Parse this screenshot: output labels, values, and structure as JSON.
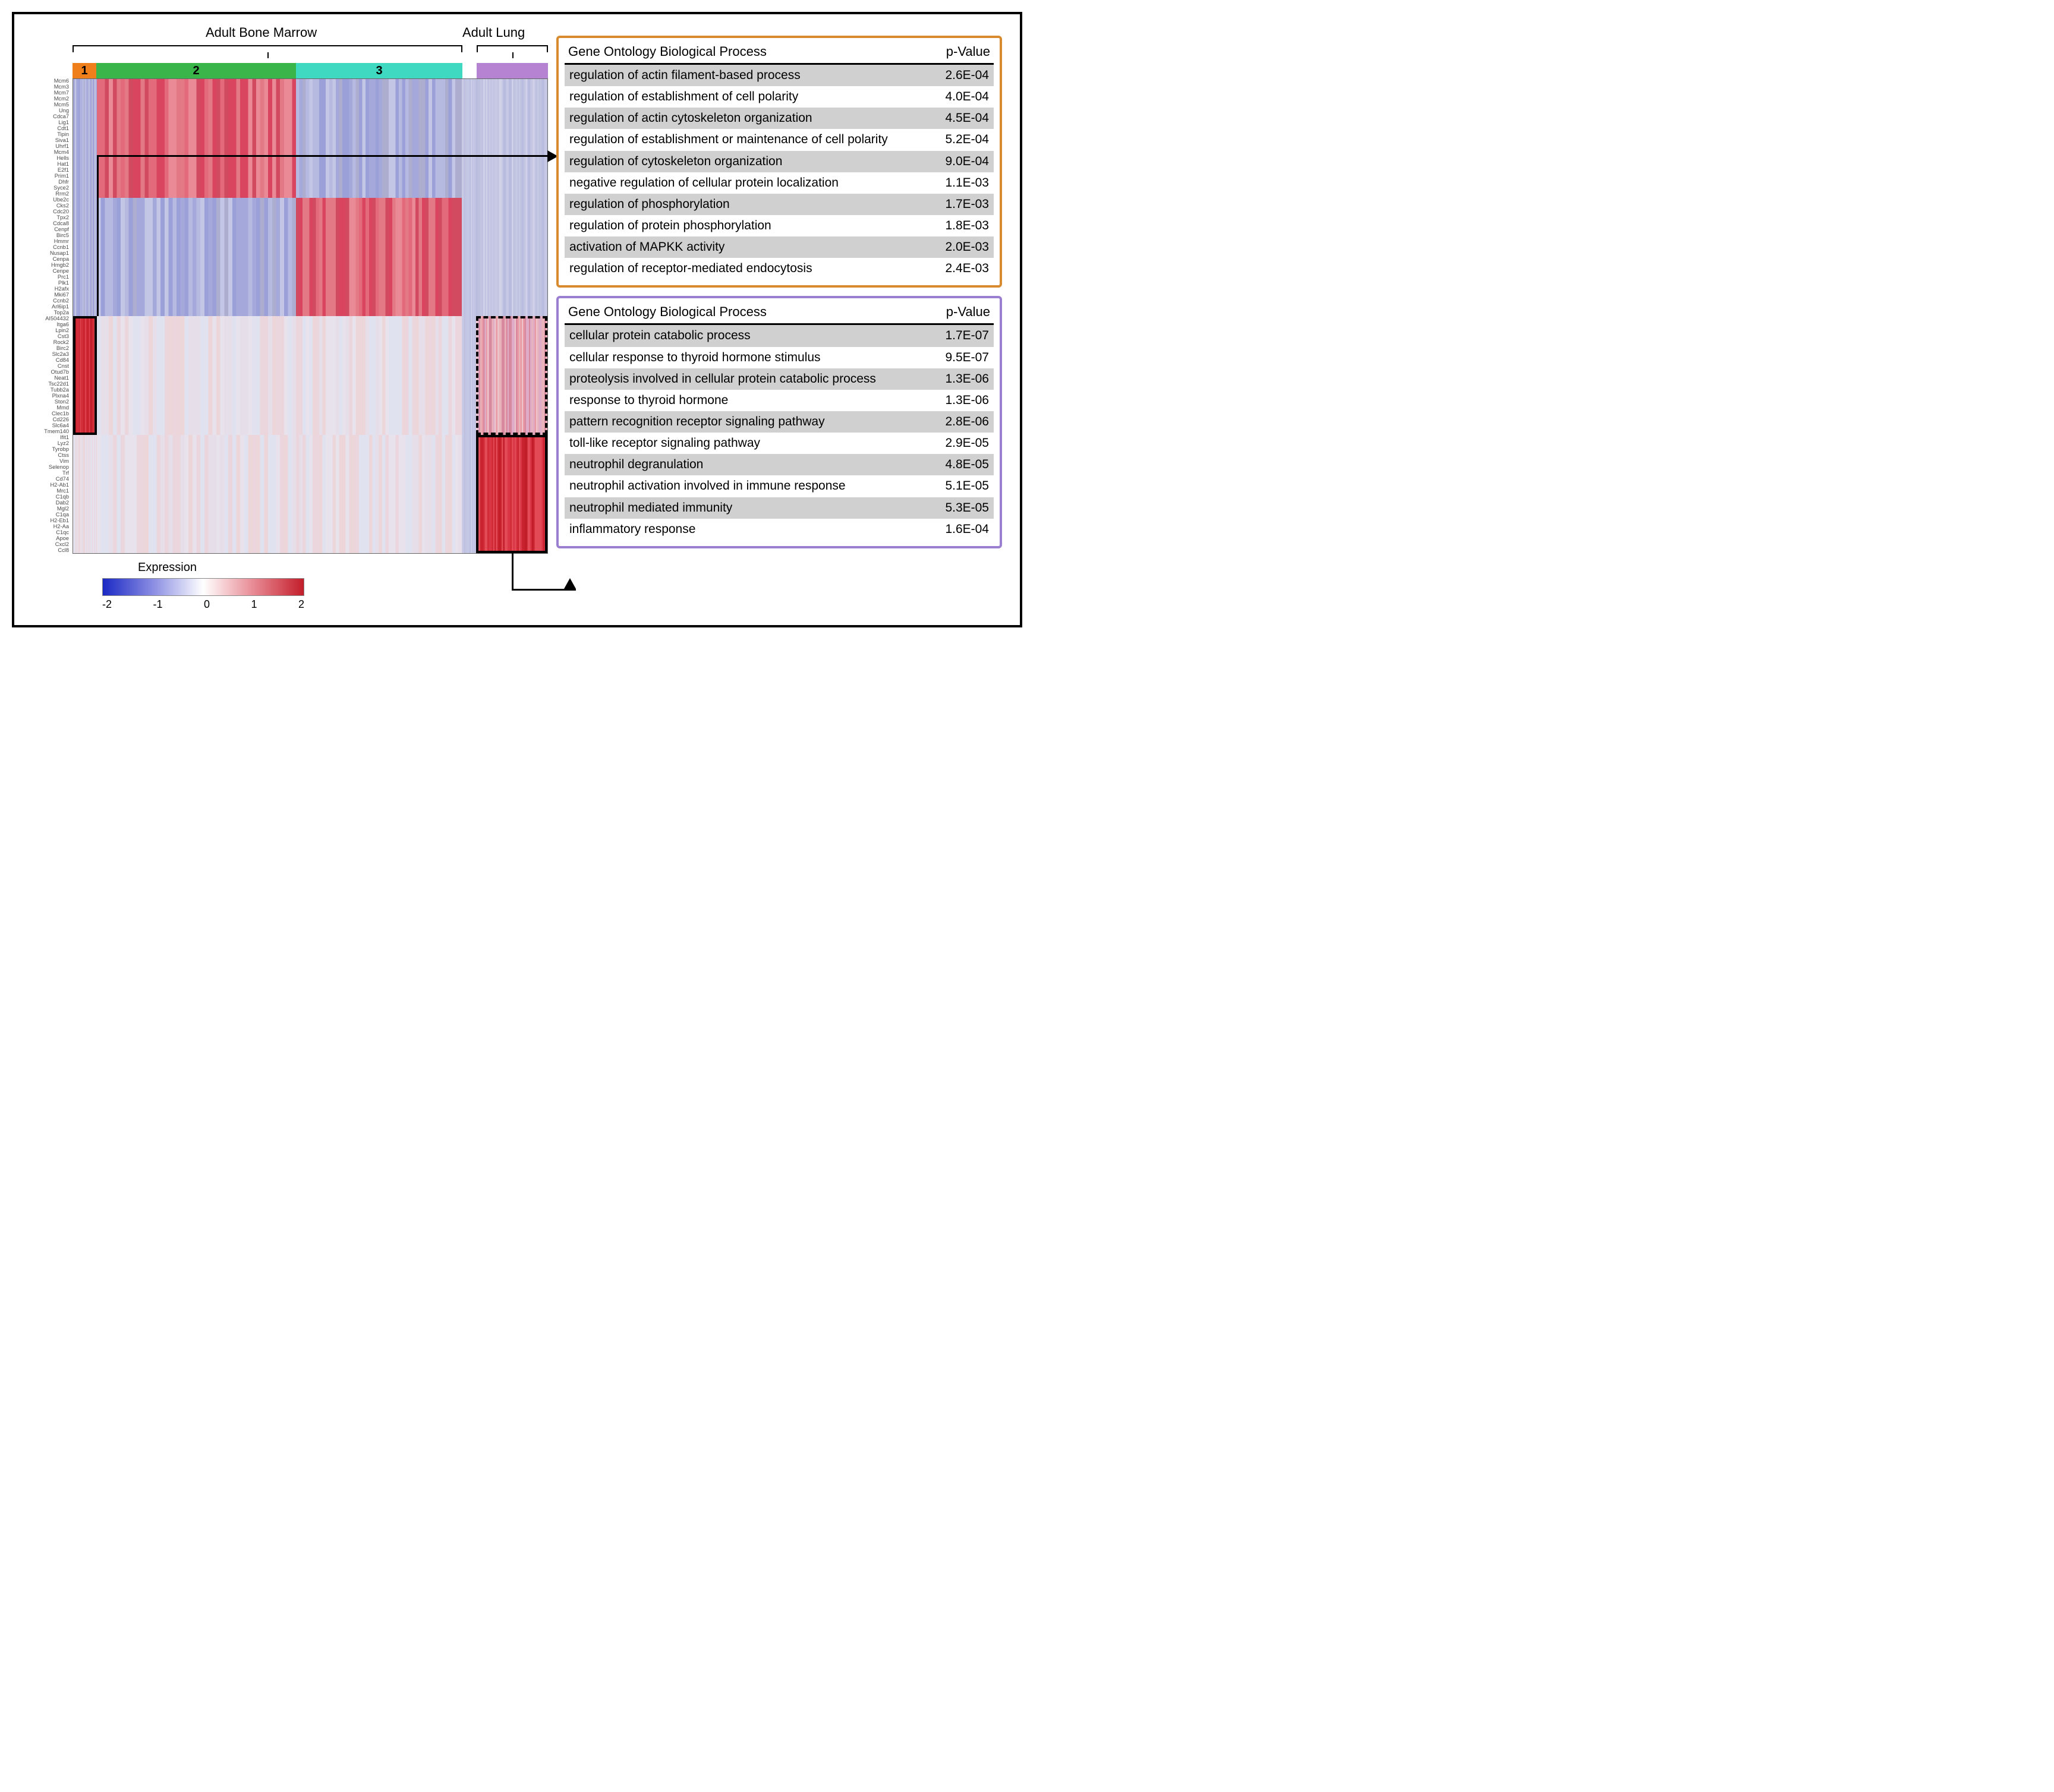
{
  "labels": {
    "tissue1": "Adult Bone Marrow",
    "tissue2": "Adult Lung",
    "legend_title": "Expression"
  },
  "brackets": {
    "bm": {
      "left_pct": 0,
      "width_pct": 82,
      "label_left_pct": 28
    },
    "lung": {
      "left_pct": 85,
      "width_pct": 15,
      "label_left_pct": 82
    }
  },
  "clusters": [
    {
      "label": "1",
      "width_pct": 5,
      "color": "#ef7f1a"
    },
    {
      "label": "2",
      "width_pct": 42,
      "color": "#39b54a"
    },
    {
      "label": "3",
      "width_pct": 35,
      "color": "#3fd9c1"
    },
    {
      "label": "",
      "width_pct": 3,
      "color": "#ffffff"
    },
    {
      "label": "",
      "width_pct": 15,
      "color": "#b583d1"
    }
  ],
  "genes": [
    "Mcm6",
    "Mcm3",
    "Mcm7",
    "Mcm2",
    "Mcm5",
    "Ung",
    "Cdca7",
    "Lig1",
    "Cdt1",
    "Tipin",
    "Siva1",
    "Uhrf1",
    "Mcm4",
    "Hells",
    "Hat1",
    "E2f1",
    "Prim1",
    "Dhfr",
    "Syce2",
    "Rrm2",
    "Ube2c",
    "Cks2",
    "Cdc20",
    "Tpx2",
    "Cdca8",
    "Cenpf",
    "Birc5",
    "Hmmr",
    "Ccnb1",
    "Nusap1",
    "Cenpa",
    "Hmgb2",
    "Cenpe",
    "Prc1",
    "Plk1",
    "H2afx",
    "Mki67",
    "Ccnb2",
    "Arl6ip1",
    "Top2a",
    "AI504432",
    "Itga6",
    "Lpin2",
    "Cst3",
    "Rock2",
    "Birc2",
    "Slc2a3",
    "Cd84",
    "Cnst",
    "Otud7b",
    "Neat1",
    "Tsc22d1",
    "Tubb2a",
    "Plxna4",
    "Ston2",
    "Mmd",
    "Clec1b",
    "Cd226",
    "Slc6a4",
    "Tmem140",
    "Ifit1",
    "Lyz2",
    "Tyrobp",
    "Ctss",
    "Vim",
    "Selenop",
    "Trf",
    "Cd74",
    "H2-Ab1",
    "Mrc1",
    "C1qb",
    "Dab2",
    "Mgl2",
    "C1qa",
    "H2-Eb1",
    "H2-Aa",
    "C1qc",
    "Apoe",
    "Cxcl2",
    "Ccl8"
  ],
  "heatmap": {
    "columns": [
      {
        "name": "c1",
        "width_pct": 5,
        "blocks": [
          {
            "h": 50,
            "class": "low"
          },
          {
            "h": 25,
            "class": "high-strong"
          },
          {
            "h": 25,
            "class": "faint"
          }
        ]
      },
      {
        "name": "c2",
        "width_pct": 42,
        "blocks": [
          {
            "h": 25,
            "class": "high"
          },
          {
            "h": 25,
            "class": "low"
          },
          {
            "h": 25,
            "class": "faint"
          },
          {
            "h": 25,
            "class": "faint"
          }
        ]
      },
      {
        "name": "c3",
        "width_pct": 35,
        "blocks": [
          {
            "h": 25,
            "class": "low"
          },
          {
            "h": 25,
            "class": "high"
          },
          {
            "h": 25,
            "class": "faint"
          },
          {
            "h": 25,
            "class": "faint"
          }
        ]
      },
      {
        "name": "gap",
        "width_pct": 3,
        "blocks": [
          {
            "h": 100,
            "class": "low-soft"
          }
        ]
      },
      {
        "name": "c4",
        "width_pct": 15,
        "blocks": [
          {
            "h": 50,
            "class": "low-soft"
          },
          {
            "h": 25,
            "class": "mid-red"
          },
          {
            "h": 25,
            "class": "high-strong"
          }
        ]
      }
    ],
    "block_palette": {
      "high": [
        "#d9455f",
        "#e26a7a",
        "#e98a96",
        "#d24a60",
        "#e37985"
      ],
      "high-strong": [
        "#c21e2a",
        "#d93545",
        "#c9232f",
        "#e24a56",
        "#cf2a36"
      ],
      "mid-red": [
        "#e99aa4",
        "#deacc6",
        "#e8b3bb",
        "#d889a0",
        "#ecc6cc"
      ],
      "low": [
        "#9ca0d8",
        "#b6b9e0",
        "#a5a8da",
        "#c4c6e6",
        "#adadcf"
      ],
      "low-soft": [
        "#b9bcde",
        "#c7c9e5",
        "#bfc1e0",
        "#d1d2ea",
        "#c2c4e2"
      ],
      "faint": [
        "#e6dee8",
        "#ecd6da",
        "#e1e2ef",
        "#ead6dc",
        "#e8e2ed"
      ]
    }
  },
  "expression_scale": {
    "min": -2,
    "max": 2,
    "ticks": [
      "-2",
      "-1",
      "0",
      "1",
      "2"
    ],
    "gradient_stops": [
      "#1b29c4",
      "#8a8de2",
      "#ffffff",
      "#e88a94",
      "#c21e2a"
    ]
  },
  "outlines": {
    "solid_c1": {
      "col": "c1",
      "top_pct": 50,
      "height_pct": 25
    },
    "dashed_c4": {
      "col": "c4",
      "top_pct": 50,
      "height_pct": 25
    },
    "solid_c4": {
      "col": "c4",
      "top_pct": 75,
      "height_pct": 25
    }
  },
  "go_top": {
    "border_color": "#d78a2e",
    "header": {
      "c1": "Gene Ontology Biological Process",
      "c2": "p-Value"
    },
    "rows": [
      {
        "term": "regulation of actin filament-based process",
        "p": "2.6E-04"
      },
      {
        "term": "regulation of establishment of cell polarity",
        "p": "4.0E-04"
      },
      {
        "term": "regulation of actin cytoskeleton organization",
        "p": "4.5E-04"
      },
      {
        "term": "regulation of establishment or maintenance of cell polarity",
        "p": "5.2E-04"
      },
      {
        "term": "regulation of cytoskeleton organization",
        "p": "9.0E-04"
      },
      {
        "term": "negative regulation of cellular protein localization",
        "p": "1.1E-03"
      },
      {
        "term": "regulation of phosphorylation",
        "p": "1.7E-03"
      },
      {
        "term": "regulation of protein phosphorylation",
        "p": "1.8E-03"
      },
      {
        "term": "activation of MAPKK activity",
        "p": "2.0E-03"
      },
      {
        "term": "regulation of receptor-mediated endocytosis",
        "p": "2.4E-03"
      }
    ]
  },
  "go_bottom": {
    "border_color": "#9a7fd1",
    "header": {
      "c1": "Gene Ontology Biological Process",
      "c2": "p-Value"
    },
    "rows": [
      {
        "term": "cellular protein catabolic process",
        "p": "1.7E-07"
      },
      {
        "term": "cellular response to thyroid hormone stimulus",
        "p": "9.5E-07"
      },
      {
        "term": "proteolysis involved in cellular protein catabolic process",
        "p": "1.3E-06"
      },
      {
        "term": "response to thyroid hormone",
        "p": "1.3E-06"
      },
      {
        "term": "pattern recognition receptor signaling pathway",
        "p": "2.8E-06"
      },
      {
        "term": "toll-like receptor signaling pathway",
        "p": "2.9E-05"
      },
      {
        "term": "neutrophil degranulation",
        "p": "4.8E-05"
      },
      {
        "term": "neutrophil activation involved in immune response",
        "p": "5.1E-05"
      },
      {
        "term": "neutrophil mediated immunity",
        "p": "5.3E-05"
      },
      {
        "term": "inflammatory response",
        "p": "1.6E-04"
      }
    ]
  }
}
